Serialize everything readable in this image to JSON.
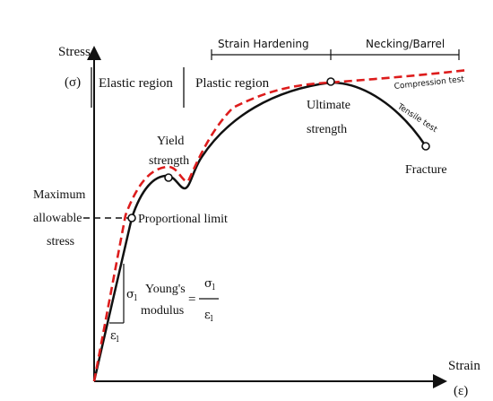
{
  "axes": {
    "y_label": "Stress",
    "y_symbol": "(σ)",
    "x_label": "Strain",
    "x_symbol": "(ε)"
  },
  "regions": {
    "elastic": "Elastic region",
    "plastic": "Plastic region",
    "strain_hardening": "Strain Hardening",
    "necking": "Necking/Barrel"
  },
  "labels": {
    "yield_line1": "Yield",
    "yield_line2": "strength",
    "proportional_limit": "Proportional limit",
    "max_allowable_line1": "Maximum",
    "max_allowable_line2": "allowable",
    "max_allowable_line3": "stress",
    "ultimate_line1": "Ultimate",
    "ultimate_line2": "strength",
    "fracture": "Fracture",
    "compression_test": "Compression test",
    "tensile_test": "Tensile test"
  },
  "youngs_modulus": {
    "line1": "Young's",
    "line2": "modulus",
    "equals": "=",
    "numerator": "σ",
    "numerator_sub": "l",
    "denominator": "ε",
    "denominator_sub": "l",
    "triangle_vertical": "σ",
    "triangle_vertical_sub": "l",
    "triangle_horizontal": "ε",
    "triangle_horizontal_sub": "l"
  },
  "colors": {
    "tensile_curve": "#111111",
    "compression_curve": "#dd1c1c",
    "axis": "#111111"
  }
}
